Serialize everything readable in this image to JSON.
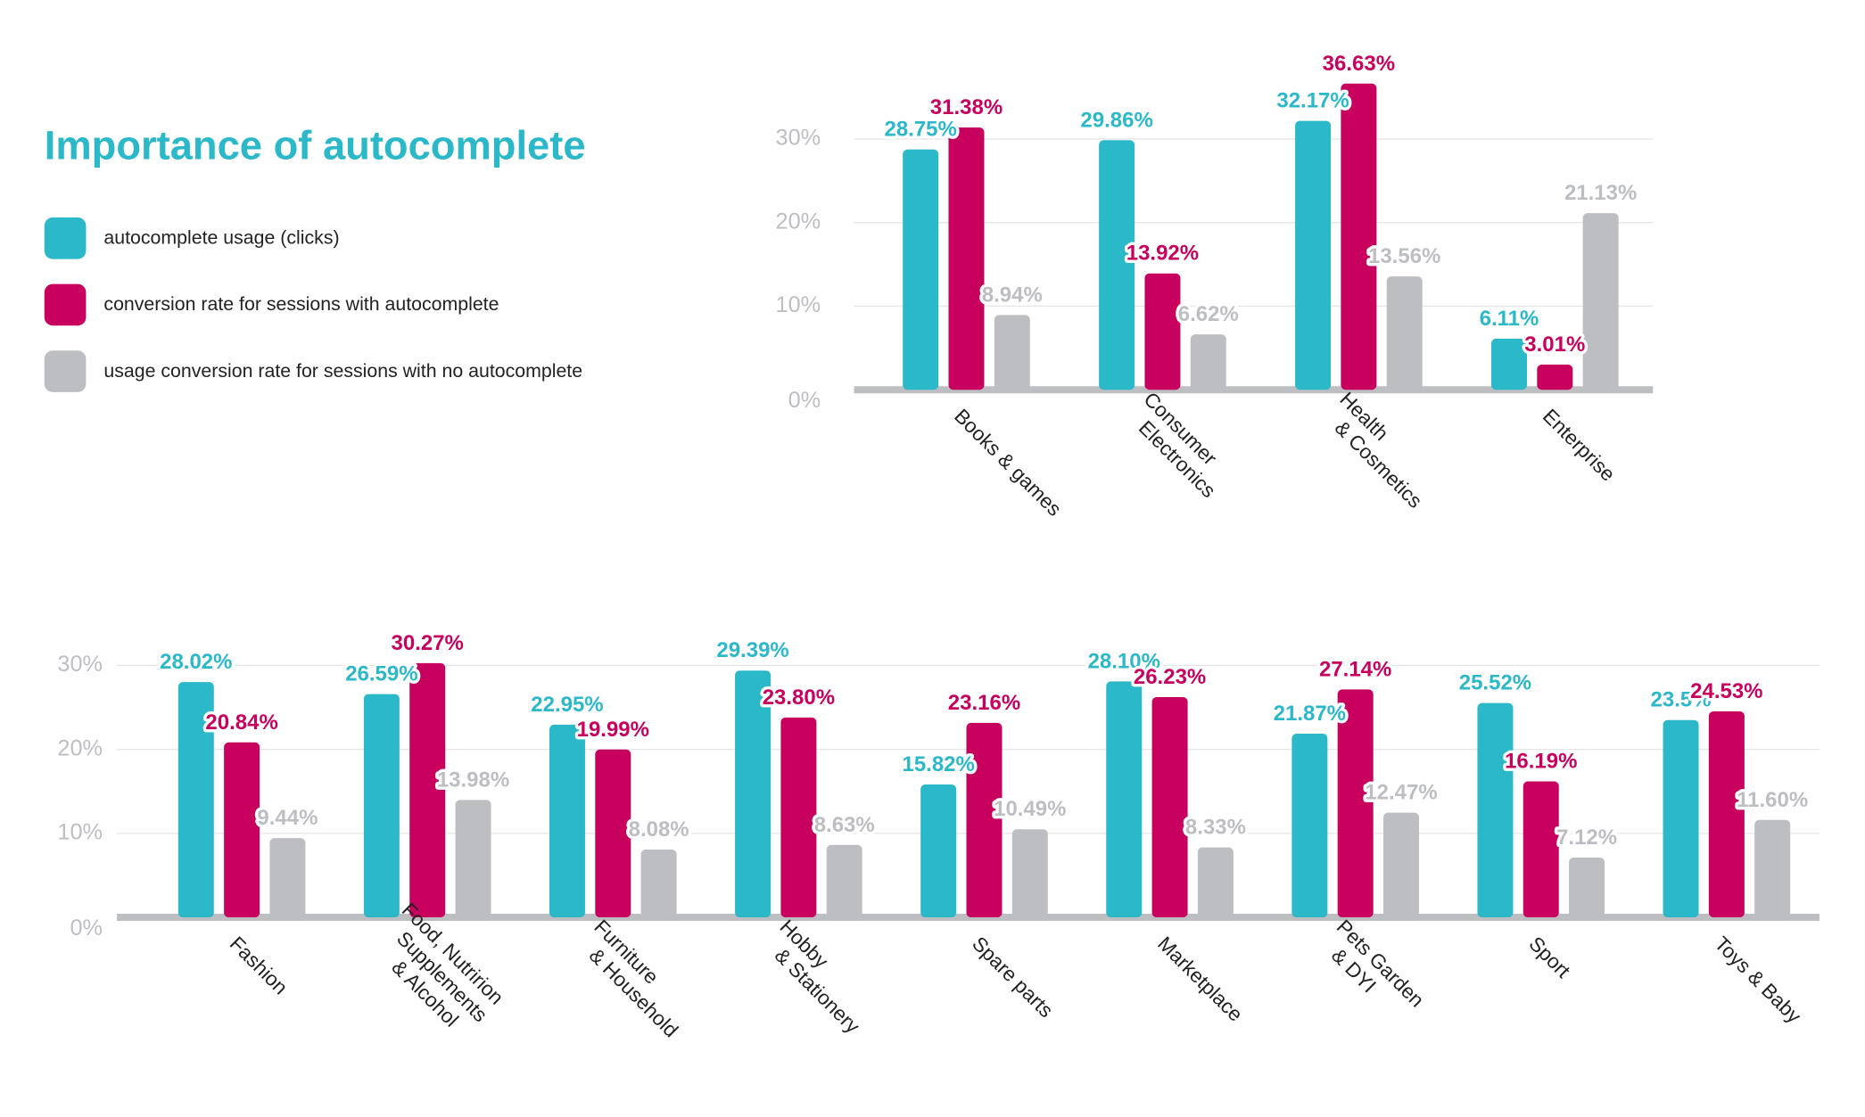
{
  "chart_data": [
    {
      "type": "bar",
      "title": "Importance of autocomplete",
      "categories": [
        [
          "Books & games"
        ],
        [
          "Consumer",
          "Electronics"
        ],
        [
          "Health",
          "& Cosmetics"
        ],
        [
          "Enterprise"
        ]
      ],
      "series": [
        {
          "name": "autocomplete usage (clicks)",
          "color": "#2bb8c8",
          "values": [
            28.75,
            29.86,
            32.17,
            6.11
          ],
          "value_labels": [
            "28.75%",
            "29.86%",
            "32.17%",
            "6.11%"
          ]
        },
        {
          "name": "conversion rate for sessions with autocomplete",
          "color": "#c8005e",
          "values": [
            31.38,
            13.92,
            36.63,
            3.01
          ],
          "value_labels": [
            "31.38%",
            "13.92%",
            "36.63%",
            "3.01%"
          ]
        },
        {
          "name": "usage conversion rate for sessions with no autocomplete",
          "color": "#bdbec2",
          "values": [
            8.94,
            6.62,
            13.56,
            21.13
          ],
          "value_labels": [
            "8.94%",
            "6.62%",
            "13.56%",
            "21.13%"
          ]
        }
      ],
      "ylim": [
        0,
        30
      ],
      "yticks": [
        {
          "value": 0,
          "label": "0%"
        },
        {
          "value": 10,
          "label": "10%"
        },
        {
          "value": 20,
          "label": "20%"
        },
        {
          "value": 30,
          "label": "30%"
        }
      ],
      "grid": true
    },
    {
      "type": "bar",
      "categories": [
        [
          "Fashion"
        ],
        [
          "Food, Nutririon",
          "Supplements",
          "& Alcohol"
        ],
        [
          "Furniture",
          "& Household"
        ],
        [
          "Hobby",
          "& Stationery"
        ],
        [
          "Spare parts"
        ],
        [
          "Marketplace"
        ],
        [
          "Pets Garden",
          "& DYI"
        ],
        [
          "Sport"
        ],
        [
          "Toys & Baby"
        ]
      ],
      "series": [
        {
          "values": [
            28.02,
            26.59,
            22.95,
            29.39,
            15.82,
            28.1,
            21.87,
            25.52,
            23.5
          ],
          "value_labels": [
            "28.02%",
            "26.59%",
            "22.95%",
            "29.39%",
            "15.82%",
            "28.10%",
            "21.87%",
            "25.52%",
            "23.5%"
          ]
        },
        {
          "values": [
            20.84,
            30.27,
            19.99,
            23.8,
            23.16,
            26.23,
            27.14,
            16.19,
            24.53
          ],
          "value_labels": [
            "20.84%",
            "30.27%",
            "19.99%",
            "23.80%",
            "23.16%",
            "26.23%",
            "27.14%",
            "16.19%",
            "24.53%"
          ]
        },
        {
          "values": [
            9.44,
            13.98,
            8.08,
            8.63,
            10.49,
            8.33,
            12.47,
            7.12,
            11.6
          ],
          "value_labels": [
            "9.44%",
            "13.98%",
            "8.08%",
            "8.63%",
            "10.49%",
            "8.33%",
            "12.47%",
            "7.12%",
            "11.60%"
          ]
        }
      ],
      "ylim": [
        0,
        30
      ],
      "yticks": [
        {
          "value": 0,
          "label": "0%"
        },
        {
          "value": 10,
          "label": "10%"
        },
        {
          "value": 20,
          "label": "20%"
        },
        {
          "value": 30,
          "label": "30%"
        }
      ],
      "grid": true
    }
  ]
}
